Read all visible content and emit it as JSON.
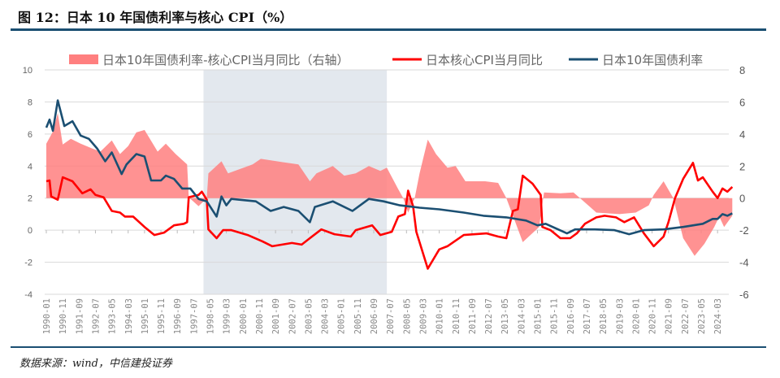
{
  "title": "图 12：日本 10 年国债利率与核心 CPI（%）",
  "source": "数据来源：wind，中信建投证券",
  "chart_data": {
    "type": "line",
    "title": "",
    "xlabel": "",
    "ylabel": "",
    "ylim_left": [
      -4,
      10
    ],
    "ylim_right": [
      -6,
      8
    ],
    "yticks_left": [
      "10",
      "8",
      "6",
      "4",
      "2",
      "0",
      "-2",
      "-4"
    ],
    "yticks_right": [
      "8",
      "6",
      "4",
      "2",
      "0",
      "-2",
      "-4",
      "-6"
    ],
    "grid": true,
    "legend_position": "top",
    "shaded_period": [
      "1998-01",
      "2007-05"
    ],
    "shade_color": "#e3e8ee",
    "xticks": [
      "1990-01",
      "1990-11",
      "1991-09",
      "1992-07",
      "1993-05",
      "1994-03",
      "1995-01",
      "1995-11",
      "1996-09",
      "1997-07",
      "1998-05",
      "1999-03",
      "2000-01",
      "2000-11",
      "2001-09",
      "2002-07",
      "2003-05",
      "2004-03",
      "2005-01",
      "2005-11",
      "2006-09",
      "2007-07",
      "2008-05",
      "2009-03",
      "2010-01",
      "2010-11",
      "2011-09",
      "2012-07",
      "2013-05",
      "2014-03",
      "2015-01",
      "2015-11",
      "2016-09",
      "2017-07",
      "2018-05",
      "2019-03",
      "2020-01",
      "2020-11",
      "2021-09",
      "2022-07",
      "2023-05",
      "2024-03"
    ],
    "series": [
      {
        "name": "日本10年国债利率-核心CPI当月同比（右轴）",
        "type": "area",
        "axis": "right",
        "color": "#ff7f7f",
        "points": [
          [
            "1990-01",
            3.4
          ],
          [
            "1990-05",
            4.15
          ],
          [
            "1990-08",
            5.3
          ],
          [
            "1990-11",
            3.35
          ],
          [
            "1991-04",
            3.7
          ],
          [
            "1991-10",
            3.4
          ],
          [
            "1992-05",
            3.1
          ],
          [
            "1992-10",
            2.9
          ],
          [
            "1993-05",
            3.6
          ],
          [
            "1993-10",
            2.75
          ],
          [
            "1994-03",
            3.25
          ],
          [
            "1994-08",
            4.1
          ],
          [
            "1995-01",
            4.25
          ],
          [
            "1995-09",
            2.9
          ],
          [
            "1996-02",
            3.4
          ],
          [
            "1996-08",
            2.75
          ],
          [
            "1997-03",
            2.1
          ],
          [
            "1997-04",
            0.05
          ],
          [
            "1997-10",
            -0.5
          ],
          [
            "1998-03",
            0
          ],
          [
            "1998-04",
            1.55
          ],
          [
            "1998-12",
            2.3
          ],
          [
            "1999-04",
            1.55
          ],
          [
            "2000-07",
            2.1
          ],
          [
            "2000-12",
            2.45
          ],
          [
            "2002-01",
            2.25
          ],
          [
            "2002-11",
            2.1
          ],
          [
            "2003-06",
            1.05
          ],
          [
            "2003-10",
            1.55
          ],
          [
            "2004-08",
            2.0
          ],
          [
            "2005-03",
            1.4
          ],
          [
            "2005-10",
            1.55
          ],
          [
            "2006-06",
            2.0
          ],
          [
            "2007-01",
            1.7
          ],
          [
            "2007-05",
            1.9
          ],
          [
            "2007-12",
            0.55
          ],
          [
            "2008-03",
            0
          ],
          [
            "2008-06",
            -0.9
          ],
          [
            "2008-10",
            0
          ],
          [
            "2009-01",
            1.55
          ],
          [
            "2009-06",
            3.65
          ],
          [
            "2009-11",
            2.75
          ],
          [
            "2010-06",
            1.9
          ],
          [
            "2010-11",
            2.0
          ],
          [
            "2011-05",
            1.05
          ],
          [
            "2012-05",
            1.05
          ],
          [
            "2013-01",
            0.95
          ],
          [
            "2013-06",
            0
          ],
          [
            "2014-04",
            -2.75
          ],
          [
            "2015-02",
            -1.8
          ],
          [
            "2015-05",
            0.35
          ],
          [
            "2016-03",
            0.3
          ],
          [
            "2016-11",
            0.35
          ],
          [
            "2017-03",
            0
          ],
          [
            "2018-01",
            -0.9
          ],
          [
            "2019-03",
            -1.0
          ],
          [
            "2020-01",
            -0.9
          ],
          [
            "2020-09",
            -0.45
          ],
          [
            "2020-12",
            0.2
          ],
          [
            "2021-06",
            1.05
          ],
          [
            "2021-12",
            0
          ],
          [
            "2022-06",
            -2.5
          ],
          [
            "2023-01",
            -3.6
          ],
          [
            "2023-07",
            -2.85
          ],
          [
            "2024-01",
            -1.8
          ],
          [
            "2024-04",
            -1.15
          ],
          [
            "2024-07",
            -1.8
          ],
          [
            "2024-12",
            -1.1
          ]
        ]
      },
      {
        "name": "日本核心CPI当月同比",
        "type": "line",
        "axis": "left",
        "color": "#ff0000",
        "points": [
          [
            "1990-01",
            3.05
          ],
          [
            "1990-03",
            3.1
          ],
          [
            "1990-04",
            2.1
          ],
          [
            "1990-08",
            1.9
          ],
          [
            "1990-11",
            3.3
          ],
          [
            "1991-05",
            3.05
          ],
          [
            "1991-11",
            2.3
          ],
          [
            "1992-04",
            2.55
          ],
          [
            "1992-07",
            2.2
          ],
          [
            "1992-12",
            2.05
          ],
          [
            "1993-05",
            1.2
          ],
          [
            "1993-10",
            1.1
          ],
          [
            "1994-01",
            0.85
          ],
          [
            "1994-06",
            0.85
          ],
          [
            "1995-01",
            0.2
          ],
          [
            "1995-07",
            -0.3
          ],
          [
            "1996-01",
            -0.15
          ],
          [
            "1996-07",
            0.3
          ],
          [
            "1997-01",
            0.4
          ],
          [
            "1997-03",
            0.5
          ],
          [
            "1997-04",
            2.05
          ],
          [
            "1997-10",
            2.2
          ],
          [
            "1997-12",
            2.4
          ],
          [
            "1998-03",
            1.9
          ],
          [
            "1998-04",
            0.05
          ],
          [
            "1998-09",
            -0.5
          ],
          [
            "1999-01",
            0.0
          ],
          [
            "1999-06",
            0.0
          ],
          [
            "2000-04",
            -0.3
          ],
          [
            "2001-01",
            -0.7
          ],
          [
            "2001-07",
            -1.0
          ],
          [
            "2002-07",
            -0.8
          ],
          [
            "2003-01",
            -0.9
          ],
          [
            "2003-06",
            -0.5
          ],
          [
            "2004-01",
            0.05
          ],
          [
            "2004-09",
            -0.25
          ],
          [
            "2005-07",
            -0.4
          ],
          [
            "2005-10",
            0.0
          ],
          [
            "2006-08",
            0.3
          ],
          [
            "2007-01",
            -0.3
          ],
          [
            "2007-08",
            -0.1
          ],
          [
            "2007-12",
            0.85
          ],
          [
            "2008-04",
            1.0
          ],
          [
            "2008-06",
            2.46
          ],
          [
            "2008-09",
            1.5
          ],
          [
            "2008-11",
            -0.1
          ],
          [
            "2009-06",
            -2.4
          ],
          [
            "2010-01",
            -1.2
          ],
          [
            "2010-06",
            -1.0
          ],
          [
            "2011-04",
            -0.3
          ],
          [
            "2012-06",
            -0.2
          ],
          [
            "2013-01",
            -0.4
          ],
          [
            "2013-06",
            -0.5
          ],
          [
            "2013-10",
            1.2
          ],
          [
            "2014-01",
            1.3
          ],
          [
            "2014-04",
            3.4
          ],
          [
            "2014-10",
            2.9
          ],
          [
            "2015-03",
            2.2
          ],
          [
            "2015-04",
            0.2
          ],
          [
            "2015-09",
            0.0
          ],
          [
            "2016-03",
            -0.5
          ],
          [
            "2016-09",
            -0.5
          ],
          [
            "2017-01",
            -0.2
          ],
          [
            "2017-06",
            0.4
          ],
          [
            "2018-01",
            0.8
          ],
          [
            "2018-06",
            0.9
          ],
          [
            "2019-01",
            0.8
          ],
          [
            "2019-06",
            0.5
          ],
          [
            "2019-12",
            0.8
          ],
          [
            "2020-06",
            -0.2
          ],
          [
            "2020-12",
            -1.0
          ],
          [
            "2021-06",
            -0.4
          ],
          [
            "2021-09",
            0.5
          ],
          [
            "2022-01",
            2.0
          ],
          [
            "2022-06",
            3.2
          ],
          [
            "2022-12",
            4.2
          ],
          [
            "2023-03",
            3.1
          ],
          [
            "2023-06",
            3.3
          ],
          [
            "2023-12",
            2.4
          ],
          [
            "2024-03",
            2.0
          ],
          [
            "2024-06",
            2.6
          ],
          [
            "2024-09",
            2.4
          ],
          [
            "2024-12",
            2.7
          ]
        ]
      },
      {
        "name": "日本10年国债利率",
        "type": "line",
        "axis": "left",
        "color": "#1b4f72",
        "points": [
          [
            "1990-01",
            6.4
          ],
          [
            "1990-03",
            6.9
          ],
          [
            "1990-05",
            6.2
          ],
          [
            "1990-08",
            8.1
          ],
          [
            "1990-12",
            6.5
          ],
          [
            "1991-05",
            6.8
          ],
          [
            "1991-10",
            5.9
          ],
          [
            "1992-03",
            5.7
          ],
          [
            "1992-08",
            5.1
          ],
          [
            "1993-01",
            4.3
          ],
          [
            "1993-05",
            4.85
          ],
          [
            "1993-11",
            3.5
          ],
          [
            "1994-02",
            4.1
          ],
          [
            "1994-08",
            4.75
          ],
          [
            "1995-01",
            4.6
          ],
          [
            "1995-05",
            3.1
          ],
          [
            "1995-11",
            3.1
          ],
          [
            "1996-02",
            3.4
          ],
          [
            "1996-07",
            3.2
          ],
          [
            "1996-12",
            2.6
          ],
          [
            "1997-05",
            2.6
          ],
          [
            "1997-10",
            1.95
          ],
          [
            "1998-03",
            1.8
          ],
          [
            "1998-09",
            0.85
          ],
          [
            "1998-12",
            2.1
          ],
          [
            "1999-03",
            1.55
          ],
          [
            "1999-06",
            1.95
          ],
          [
            "2000-09",
            1.8
          ],
          [
            "2001-06",
            1.2
          ],
          [
            "2002-02",
            1.45
          ],
          [
            "2002-11",
            1.2
          ],
          [
            "2003-06",
            0.5
          ],
          [
            "2003-09",
            1.45
          ],
          [
            "2004-08",
            1.8
          ],
          [
            "2005-08",
            1.2
          ],
          [
            "2006-06",
            1.95
          ],
          [
            "2007-03",
            1.8
          ],
          [
            "2008-01",
            1.55
          ],
          [
            "2009-01",
            1.4
          ],
          [
            "2010-01",
            1.3
          ],
          [
            "2011-04",
            1.1
          ],
          [
            "2012-04",
            0.9
          ],
          [
            "2013-06",
            0.8
          ],
          [
            "2014-06",
            0.6
          ],
          [
            "2015-01",
            0.3
          ],
          [
            "2015-06",
            0.4
          ],
          [
            "2016-07",
            -0.2
          ],
          [
            "2016-12",
            0.05
          ],
          [
            "2017-12",
            0.05
          ],
          [
            "2018-12",
            0.0
          ],
          [
            "2019-09",
            -0.25
          ],
          [
            "2020-06",
            0.0
          ],
          [
            "2021-06",
            0.05
          ],
          [
            "2022-06",
            0.2
          ],
          [
            "2023-06",
            0.4
          ],
          [
            "2023-12",
            0.7
          ],
          [
            "2024-03",
            0.7
          ],
          [
            "2024-06",
            1.0
          ],
          [
            "2024-09",
            0.9
          ],
          [
            "2024-12",
            1.05
          ]
        ]
      }
    ]
  }
}
